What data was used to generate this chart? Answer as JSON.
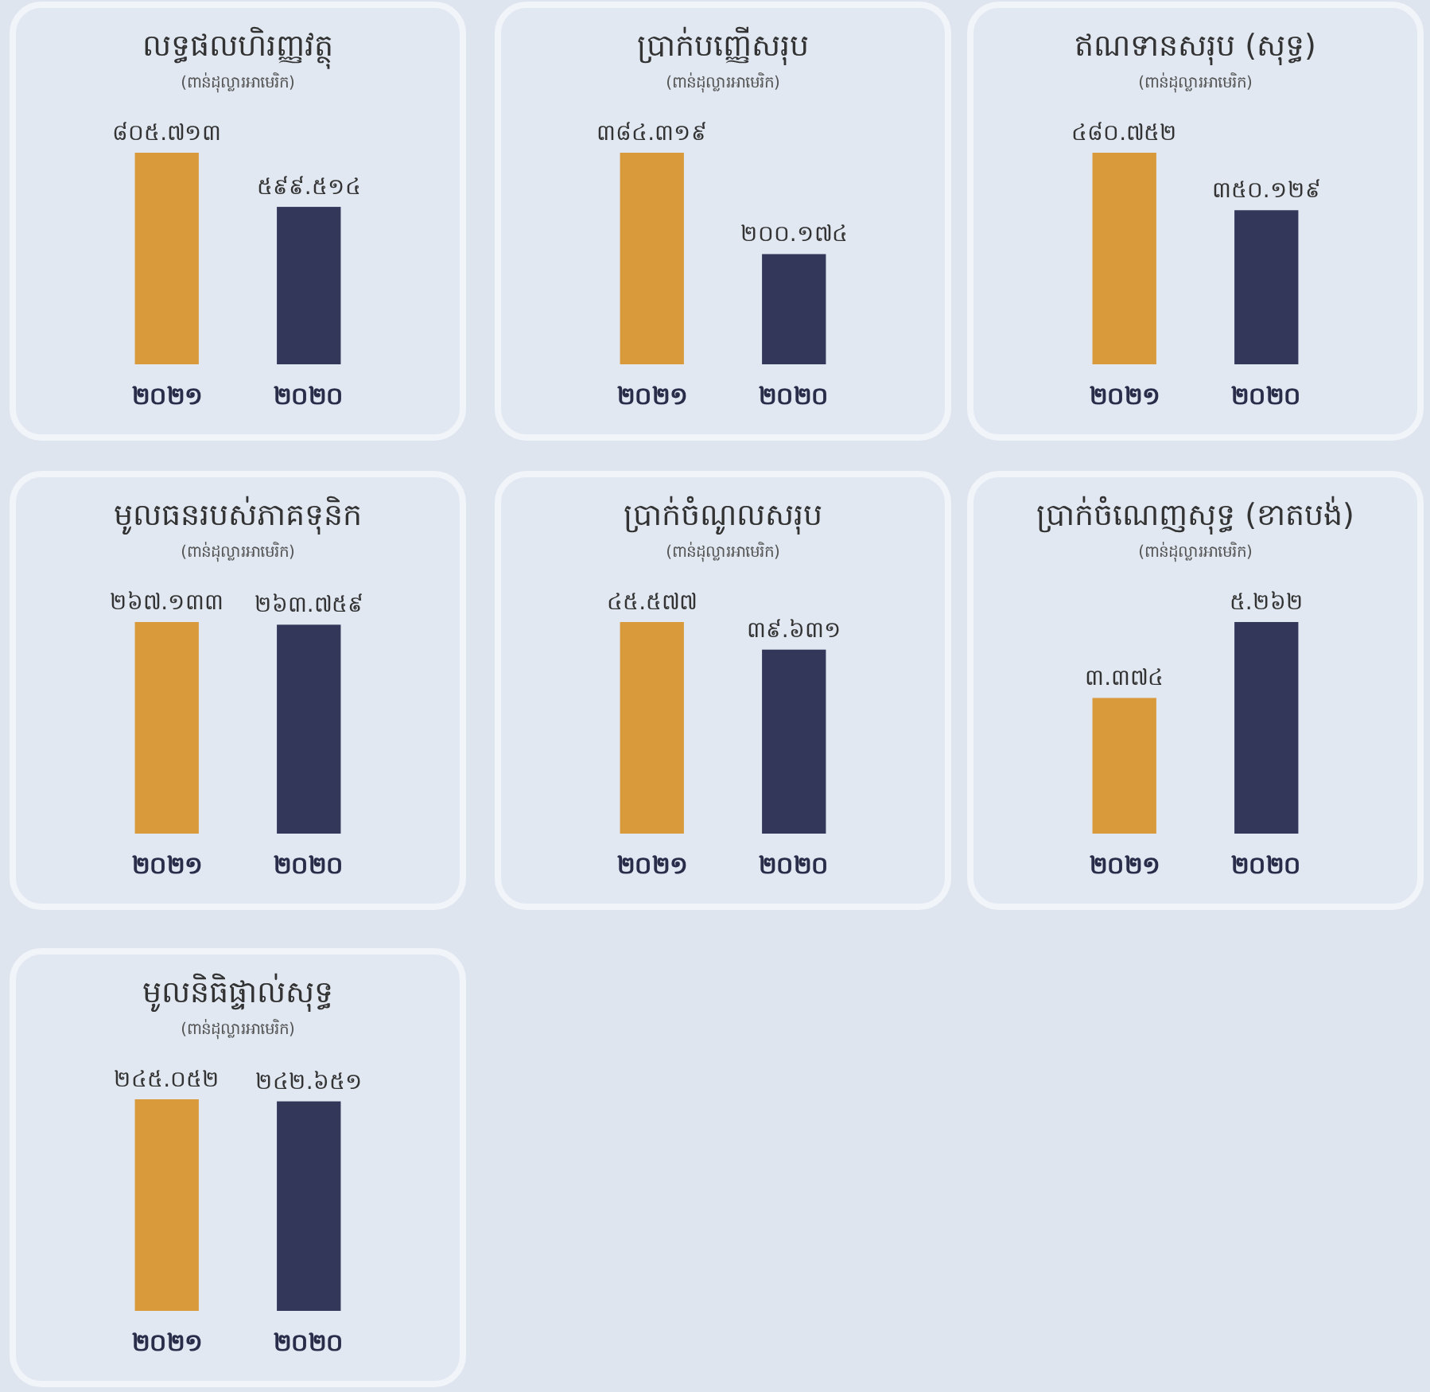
{
  "chart_data": [
    {
      "type": "bar",
      "title": "លទ្ធផលហិរញ្ញវត្ថុ",
      "subtitle": "(ពាន់ដុល្លារអាមេរិក)",
      "categories": [
        "២០២១",
        "២០២០"
      ],
      "values": [
        805.713,
        599.514
      ],
      "value_labels": [
        "៨០៥.៧១៣",
        "៥៩៩.៥១៤"
      ],
      "colors": [
        "#d99a3c",
        "#33375a"
      ]
    },
    {
      "type": "bar",
      "title": "ប្រាក់បញ្ញើសរុប",
      "subtitle": "(ពាន់ដុល្លារអាមេរិក)",
      "categories": [
        "២០២១",
        "២០២០"
      ],
      "values": [
        384.319,
        200.174
      ],
      "value_labels": [
        "៣៨៤.៣១៩",
        "២០០.១៧៤"
      ],
      "colors": [
        "#d99a3c",
        "#33375a"
      ]
    },
    {
      "type": "bar",
      "title": "ឥណទានសរុប (សុទ្ធ)",
      "subtitle": "(ពាន់ដុល្លារអាមេរិក)",
      "categories": [
        "២០២១",
        "២០២០"
      ],
      "values": [
        480.752,
        350.129
      ],
      "value_labels": [
        "៤៨០.៧៥២",
        "៣៥០.១២៩"
      ],
      "colors": [
        "#d99a3c",
        "#33375a"
      ]
    },
    {
      "type": "bar",
      "title": "មូលធនរបស់ភាគទុនិក",
      "subtitle": "(ពាន់ដុល្លារអាមេរិក)",
      "categories": [
        "២០២១",
        "២០២០"
      ],
      "values": [
        267.133,
        263.759
      ],
      "value_labels": [
        "២៦៧.១៣៣",
        "២៦៣.៧៥៩"
      ],
      "colors": [
        "#d99a3c",
        "#33375a"
      ]
    },
    {
      "type": "bar",
      "title": "ប្រាក់ចំណូលសរុប",
      "subtitle": "(ពាន់ដុល្លារអាមេរិក)",
      "categories": [
        "២០២១",
        "២០២០"
      ],
      "values": [
        45.577,
        39.631
      ],
      "value_labels": [
        "៤៥.៥៧៧",
        "៣៩.៦៣១"
      ],
      "colors": [
        "#d99a3c",
        "#33375a"
      ]
    },
    {
      "type": "bar",
      "title": "ប្រាក់ចំណេញសុទ្ធ (ខាតបង់)",
      "subtitle": "(ពាន់ដុល្លារអាមេរិក)",
      "categories": [
        "២០២១",
        "២០២០"
      ],
      "values": [
        3.374,
        5.262
      ],
      "value_labels": [
        "៣.៣៧៤",
        "៥.២៦២"
      ],
      "colors": [
        "#d99a3c",
        "#33375a"
      ]
    },
    {
      "type": "bar",
      "title": "មូលនិធិផ្ទាល់សុទ្ធ",
      "subtitle": "(ពាន់ដុល្លារអាមេរិក)",
      "categories": [
        "២០២១",
        "២០២០"
      ],
      "values": [
        245.052,
        242.651
      ],
      "value_labels": [
        "២៤៥.០៥២",
        "២៤២.៦៥១"
      ],
      "colors": [
        "#d99a3c",
        "#33375a"
      ]
    }
  ]
}
